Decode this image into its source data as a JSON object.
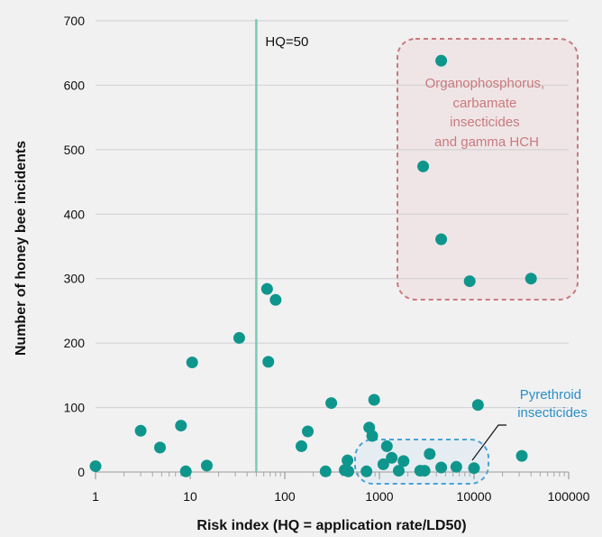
{
  "chart_data": {
    "type": "scatter",
    "title": "",
    "xlabel": "Risk index (HQ = application rate/LD50)",
    "ylabel": "Number of honey bee incidents",
    "xscale": "log",
    "xlim": [
      1,
      100000
    ],
    "ylim": [
      0,
      700
    ],
    "xticks": [
      "1",
      "10",
      "100",
      "1000",
      "10000",
      "100000"
    ],
    "yticks": [
      "0",
      "100",
      "200",
      "300",
      "400",
      "500",
      "600",
      "700"
    ],
    "grid": "y-major",
    "colors": {
      "point": "#0f968c",
      "hq_line": "#7bcbb7",
      "organo_box": "#c97a7e",
      "organo_fill": "#efe5e6",
      "pyrethroid_box": "#4aa3d3",
      "pyrethroid_fill": "#e6edf2",
      "pyrethroid_text": "#2a8fc8"
    },
    "reference_line": {
      "x": 50,
      "label": "HQ=50"
    },
    "annotations": [
      {
        "name": "organophosphorus",
        "lines": [
          "Organophosphorus,",
          "carbamate",
          "insecticides",
          "and gamma HCH"
        ]
      },
      {
        "name": "pyrethroid",
        "lines": [
          "Pyrethroid",
          "insecticides"
        ]
      }
    ],
    "points": [
      {
        "x": 1,
        "y": 9
      },
      {
        "x": 3,
        "y": 64
      },
      {
        "x": 4.8,
        "y": 38
      },
      {
        "x": 8,
        "y": 72
      },
      {
        "x": 9,
        "y": 1
      },
      {
        "x": 10.5,
        "y": 170
      },
      {
        "x": 15,
        "y": 10
      },
      {
        "x": 33,
        "y": 208
      },
      {
        "x": 65,
        "y": 284
      },
      {
        "x": 67,
        "y": 171
      },
      {
        "x": 80,
        "y": 267
      },
      {
        "x": 150,
        "y": 40
      },
      {
        "x": 175,
        "y": 63
      },
      {
        "x": 270,
        "y": 1
      },
      {
        "x": 310,
        "y": 107
      },
      {
        "x": 430,
        "y": 3
      },
      {
        "x": 460,
        "y": 18
      },
      {
        "x": 470,
        "y": 1
      },
      {
        "x": 730,
        "y": 1
      },
      {
        "x": 780,
        "y": 69
      },
      {
        "x": 840,
        "y": 56
      },
      {
        "x": 880,
        "y": 112
      },
      {
        "x": 1100,
        "y": 12
      },
      {
        "x": 1200,
        "y": 40
      },
      {
        "x": 1350,
        "y": 22
      },
      {
        "x": 1600,
        "y": 2
      },
      {
        "x": 1800,
        "y": 17
      },
      {
        "x": 2700,
        "y": 2
      },
      {
        "x": 3000,
        "y": 2
      },
      {
        "x": 3400,
        "y": 28
      },
      {
        "x": 4500,
        "y": 7
      },
      {
        "x": 6500,
        "y": 8
      },
      {
        "x": 10000,
        "y": 6
      },
      {
        "x": 11000,
        "y": 104
      },
      {
        "x": 32000,
        "y": 25
      },
      {
        "x": 2900,
        "y": 474
      },
      {
        "x": 4500,
        "y": 638
      },
      {
        "x": 4500,
        "y": 361
      },
      {
        "x": 9000,
        "y": 296
      },
      {
        "x": 40000,
        "y": 300
      }
    ]
  }
}
